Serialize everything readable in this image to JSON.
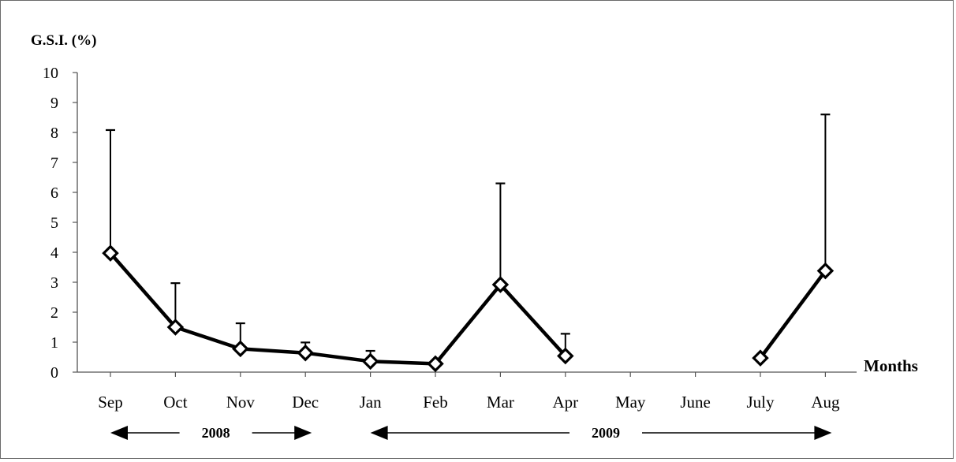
{
  "chart_data": {
    "type": "line",
    "ylabel": "G.S.I. (%)",
    "xlabel": "Months",
    "ylim": [
      0,
      10
    ],
    "yticks": [
      "0",
      "1",
      "2",
      "3",
      "4",
      "5",
      "6",
      "7",
      "8",
      "9",
      "10"
    ],
    "categories": [
      "Sep",
      "Oct",
      "Nov",
      "Dec",
      "Jan",
      "Feb",
      "Mar",
      "Apr",
      "May",
      "June",
      "July",
      "Aug"
    ],
    "series": [
      {
        "values": [
          3.97,
          1.5,
          0.78,
          0.64,
          0.36,
          0.28,
          2.92,
          0.54,
          null,
          null,
          0.47,
          3.38
        ],
        "error_upper": [
          8.08,
          2.97,
          1.63,
          0.99,
          0.71,
          null,
          6.3,
          1.28,
          null,
          null,
          null,
          8.6
        ],
        "marker": "diamond-open",
        "color": "#000000"
      }
    ],
    "year_labels": [
      {
        "label": "2008",
        "from": "Sep",
        "to": "Dec"
      },
      {
        "label": "2009",
        "from": "Jan",
        "to": "Aug"
      }
    ],
    "grid": false,
    "legend": "none"
  }
}
